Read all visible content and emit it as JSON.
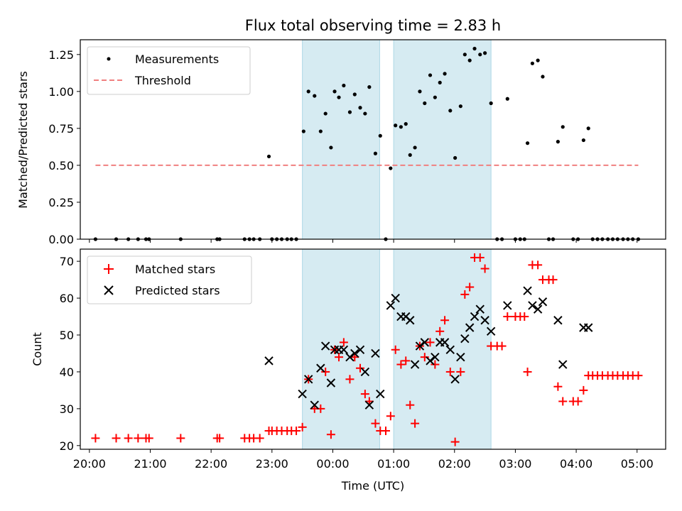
{
  "figure": {
    "title": "Flux total observing time = 2.83 h",
    "xlabel": "Time (UTC)",
    "xticks": [
      "20:00",
      "21:00",
      "22:00",
      "23:00",
      "00:00",
      "01:00",
      "02:00",
      "03:00",
      "04:00",
      "05:00"
    ]
  },
  "colors": {
    "measurements": "#000000",
    "threshold": "#f08080",
    "matched": "#ff0000",
    "predicted": "#000000",
    "span": "#add8e6"
  },
  "chart_data": [
    {
      "type": "scatter",
      "title": "Flux total observing time = 2.83 h",
      "ylabel": "Matched/Predicted stars",
      "xlim_hours": [
        19.85,
        29.47
      ],
      "ylim": [
        0,
        1.35
      ],
      "yticks": [
        "0.00",
        "0.25",
        "0.50",
        "0.75",
        "1.00",
        "1.25"
      ],
      "x_unit": "hours since 20:00 UTC of first night",
      "legend": {
        "position": "upper-left",
        "entries": [
          "Measurements",
          "Threshold"
        ]
      },
      "shaded_spans": [
        [
          23.5,
          24.77
        ],
        [
          25.0,
          26.6
        ]
      ],
      "threshold": {
        "name": "Threshold",
        "value": 0.5,
        "x_range": [
          20.1,
          29.02
        ]
      },
      "series": [
        {
          "name": "Measurements",
          "points": [
            [
              20.1,
              0
            ],
            [
              20.44,
              0
            ],
            [
              20.64,
              0
            ],
            [
              20.8,
              0
            ],
            [
              20.93,
              0
            ],
            [
              20.98,
              0
            ],
            [
              21.5,
              0
            ],
            [
              22.1,
              0
            ],
            [
              22.14,
              0
            ],
            [
              22.55,
              0
            ],
            [
              22.63,
              0
            ],
            [
              22.7,
              0
            ],
            [
              22.8,
              0
            ],
            [
              22.95,
              0.56
            ],
            [
              23.0,
              0
            ],
            [
              23.08,
              0
            ],
            [
              23.16,
              0
            ],
            [
              23.25,
              0
            ],
            [
              23.32,
              0
            ],
            [
              23.4,
              0
            ],
            [
              23.52,
              0.73
            ],
            [
              23.6,
              1.0
            ],
            [
              23.7,
              0.97
            ],
            [
              23.8,
              0.73
            ],
            [
              23.88,
              0.85
            ],
            [
              23.97,
              0.62
            ],
            [
              24.03,
              1.0
            ],
            [
              24.1,
              0.96
            ],
            [
              24.18,
              1.04
            ],
            [
              24.28,
              0.86
            ],
            [
              24.36,
              0.98
            ],
            [
              24.45,
              0.89
            ],
            [
              24.53,
              0.85
            ],
            [
              24.6,
              1.03
            ],
            [
              24.7,
              0.58
            ],
            [
              24.78,
              0.7
            ],
            [
              24.87,
              0
            ],
            [
              24.95,
              0.48
            ],
            [
              25.03,
              0.77
            ],
            [
              25.12,
              0.76
            ],
            [
              25.2,
              0.78
            ],
            [
              25.27,
              0.57
            ],
            [
              25.35,
              0.62
            ],
            [
              25.43,
              1.0
            ],
            [
              25.51,
              0.92
            ],
            [
              25.6,
              1.11
            ],
            [
              25.68,
              0.96
            ],
            [
              25.76,
              1.06
            ],
            [
              25.84,
              1.12
            ],
            [
              25.93,
              0.87
            ],
            [
              26.01,
              0.55
            ],
            [
              26.1,
              0.9
            ],
            [
              26.17,
              1.25
            ],
            [
              26.25,
              1.21
            ],
            [
              26.33,
              1.29
            ],
            [
              26.42,
              1.25
            ],
            [
              26.5,
              1.26
            ],
            [
              26.6,
              0.92
            ],
            [
              26.7,
              0
            ],
            [
              26.78,
              0
            ],
            [
              26.87,
              0.95
            ],
            [
              27.0,
              0
            ],
            [
              27.08,
              0
            ],
            [
              27.15,
              0
            ],
            [
              27.2,
              0.65
            ],
            [
              27.28,
              1.19
            ],
            [
              27.37,
              1.21
            ],
            [
              27.45,
              1.1
            ],
            [
              27.55,
              0
            ],
            [
              27.62,
              0
            ],
            [
              27.7,
              0.66
            ],
            [
              27.78,
              0.76
            ],
            [
              27.95,
              0
            ],
            [
              28.03,
              0
            ],
            [
              28.12,
              0.67
            ],
            [
              28.2,
              0.75
            ],
            [
              28.27,
              0
            ],
            [
              28.35,
              0
            ],
            [
              28.43,
              0
            ],
            [
              28.52,
              0
            ],
            [
              28.6,
              0
            ],
            [
              28.68,
              0
            ],
            [
              28.77,
              0
            ],
            [
              28.85,
              0
            ],
            [
              28.93,
              0
            ],
            [
              29.02,
              0
            ]
          ]
        }
      ]
    },
    {
      "type": "scatter",
      "ylabel": "Count",
      "xlabel": "Time (UTC)",
      "xlim_hours": [
        19.85,
        29.47
      ],
      "ylim": [
        19,
        73.3
      ],
      "yticks": [
        "20",
        "30",
        "40",
        "50",
        "60",
        "70"
      ],
      "legend": {
        "position": "upper-left",
        "entries": [
          "Matched stars",
          "Predicted stars"
        ]
      },
      "shaded_spans": [
        [
          23.5,
          24.77
        ],
        [
          25.0,
          26.6
        ]
      ],
      "series": [
        {
          "name": "Matched stars",
          "marker": "+",
          "points": [
            [
              20.1,
              22
            ],
            [
              20.44,
              22
            ],
            [
              20.64,
              22
            ],
            [
              20.8,
              22
            ],
            [
              20.93,
              22
            ],
            [
              20.98,
              22
            ],
            [
              21.5,
              22
            ],
            [
              22.1,
              22
            ],
            [
              22.14,
              22
            ],
            [
              22.55,
              22
            ],
            [
              22.63,
              22
            ],
            [
              22.7,
              22
            ],
            [
              22.8,
              22
            ],
            [
              22.95,
              24
            ],
            [
              23.0,
              24
            ],
            [
              23.08,
              24
            ],
            [
              23.16,
              24
            ],
            [
              23.25,
              24
            ],
            [
              23.32,
              24
            ],
            [
              23.4,
              24
            ],
            [
              23.5,
              25
            ],
            [
              23.6,
              38
            ],
            [
              23.7,
              30
            ],
            [
              23.8,
              30
            ],
            [
              23.88,
              40
            ],
            [
              23.97,
              23
            ],
            [
              24.03,
              46
            ],
            [
              24.1,
              44
            ],
            [
              24.18,
              48
            ],
            [
              24.28,
              38
            ],
            [
              24.36,
              44
            ],
            [
              24.45,
              41
            ],
            [
              24.53,
              34
            ],
            [
              24.6,
              32
            ],
            [
              24.7,
              26
            ],
            [
              24.78,
              24
            ],
            [
              24.87,
              24
            ],
            [
              24.95,
              28
            ],
            [
              25.03,
              46
            ],
            [
              25.12,
              42
            ],
            [
              25.2,
              43
            ],
            [
              25.27,
              31
            ],
            [
              25.35,
              26
            ],
            [
              25.43,
              47
            ],
            [
              25.51,
              44
            ],
            [
              25.6,
              48
            ],
            [
              25.68,
              42
            ],
            [
              25.76,
              51
            ],
            [
              25.84,
              54
            ],
            [
              25.93,
              40
            ],
            [
              26.01,
              21
            ],
            [
              26.1,
              40
            ],
            [
              26.17,
              61
            ],
            [
              26.25,
              63
            ],
            [
              26.33,
              71
            ],
            [
              26.42,
              71
            ],
            [
              26.5,
              68
            ],
            [
              26.6,
              47
            ],
            [
              26.7,
              47
            ],
            [
              26.78,
              47
            ],
            [
              26.87,
              55
            ],
            [
              27.0,
              55
            ],
            [
              27.08,
              55
            ],
            [
              27.15,
              55
            ],
            [
              27.2,
              40
            ],
            [
              27.28,
              69
            ],
            [
              27.37,
              69
            ],
            [
              27.45,
              65
            ],
            [
              27.55,
              65
            ],
            [
              27.62,
              65
            ],
            [
              27.7,
              36
            ],
            [
              27.78,
              32
            ],
            [
              27.95,
              32
            ],
            [
              28.03,
              32
            ],
            [
              28.12,
              35
            ],
            [
              28.2,
              39
            ],
            [
              28.27,
              39
            ],
            [
              28.35,
              39
            ],
            [
              28.43,
              39
            ],
            [
              28.52,
              39
            ],
            [
              28.6,
              39
            ],
            [
              28.68,
              39
            ],
            [
              28.77,
              39
            ],
            [
              28.85,
              39
            ],
            [
              28.93,
              39
            ],
            [
              29.02,
              39
            ]
          ]
        },
        {
          "name": "Predicted stars",
          "marker": "x",
          "points": [
            [
              22.95,
              43
            ],
            [
              23.5,
              34
            ],
            [
              23.6,
              38
            ],
            [
              23.7,
              31
            ],
            [
              23.8,
              41
            ],
            [
              23.88,
              47
            ],
            [
              23.97,
              37
            ],
            [
              24.03,
              46
            ],
            [
              24.1,
              46
            ],
            [
              24.18,
              46
            ],
            [
              24.28,
              44
            ],
            [
              24.36,
              45
            ],
            [
              24.45,
              46
            ],
            [
              24.53,
              40
            ],
            [
              24.6,
              31
            ],
            [
              24.7,
              45
            ],
            [
              24.78,
              34
            ],
            [
              24.95,
              58
            ],
            [
              25.03,
              60
            ],
            [
              25.12,
              55
            ],
            [
              25.2,
              55
            ],
            [
              25.27,
              54
            ],
            [
              25.35,
              42
            ],
            [
              25.43,
              47
            ],
            [
              25.51,
              48
            ],
            [
              25.6,
              43
            ],
            [
              25.68,
              44
            ],
            [
              25.76,
              48
            ],
            [
              25.84,
              48
            ],
            [
              25.93,
              46
            ],
            [
              26.01,
              38
            ],
            [
              26.1,
              44
            ],
            [
              26.17,
              49
            ],
            [
              26.25,
              52
            ],
            [
              26.33,
              55
            ],
            [
              26.42,
              57
            ],
            [
              26.5,
              54
            ],
            [
              26.6,
              51
            ],
            [
              26.87,
              58
            ],
            [
              27.2,
              62
            ],
            [
              27.28,
              58
            ],
            [
              27.37,
              57
            ],
            [
              27.45,
              59
            ],
            [
              27.7,
              54
            ],
            [
              27.78,
              42
            ],
            [
              28.12,
              52
            ],
            [
              28.2,
              52
            ]
          ]
        }
      ]
    }
  ]
}
